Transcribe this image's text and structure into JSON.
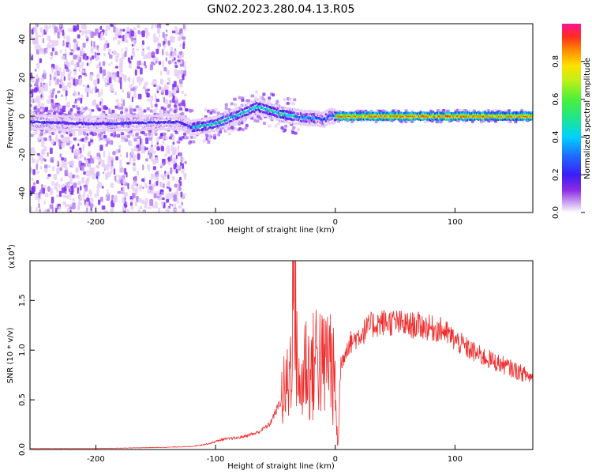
{
  "title": "GN02.2023.280.04.13.R05",
  "colors": {
    "snr_line": "#ee2c2c",
    "spec_palette": [
      "#ffffff",
      "#e6cff7",
      "#b27cf0",
      "#7e2cf0",
      "#3c1ef5",
      "#1f6bff",
      "#00d2ff",
      "#1ee68c",
      "#4cf03a",
      "#c0f018",
      "#ffe000",
      "#ff8a00",
      "#ff2e1e",
      "#ff1493"
    ]
  },
  "chart_data": [
    {
      "type": "heatmap",
      "xlabel": "Height of straight line (km)",
      "ylabel": "Frequency (Hz)",
      "xlim": [
        -255,
        165
      ],
      "ylim": [
        -50,
        48
      ],
      "xticks": [
        -200,
        -100,
        0,
        100
      ],
      "xtick_labels": [
        "-200",
        "-100",
        "0",
        "100"
      ],
      "yticks": [
        -40,
        -20,
        0,
        20,
        40
      ],
      "ytick_labels": [
        "-40",
        "-20",
        "0",
        "20",
        "40"
      ],
      "colorbar": {
        "label": "Normalized spectral amplitude",
        "range": [
          0,
          1
        ],
        "ticks": [
          0.0,
          0.2,
          0.4,
          0.6,
          0.8
        ],
        "tick_labels": [
          "0.0",
          "0.2",
          "0.4",
          "0.6",
          "0.8"
        ]
      },
      "ridge_frequency_hz": {
        "x": [
          -255,
          -200,
          -130,
          -120,
          -100,
          -80,
          -65,
          -55,
          -45,
          -35,
          -25,
          -15,
          -10,
          -5,
          0,
          20,
          50,
          100,
          165
        ],
        "y": [
          -3,
          -4,
          -3,
          -6,
          -4,
          1,
          5,
          3,
          1,
          0,
          -1,
          -1,
          -2,
          0,
          0,
          0,
          0,
          0,
          0
        ]
      },
      "broadband_noise_until_km": -125
    },
    {
      "type": "line",
      "xlabel": "Height of straight line (km)",
      "ylabel": "SNR (10 * v/v)",
      "y_multiplier": "(x10^4)",
      "y_multiplier_base": "(x10",
      "y_multiplier_exp": "4",
      "xlim": [
        -255,
        165
      ],
      "ylim": [
        0,
        1.9
      ],
      "xticks": [
        -200,
        -100,
        0,
        100
      ],
      "xtick_labels": [
        "-200",
        "-100",
        "0",
        "100"
      ],
      "yticks": [
        0.0,
        0.5,
        1.0,
        1.5
      ],
      "ytick_labels": [
        "0.0",
        "0.5",
        "1.0",
        "1.5"
      ],
      "series": [
        {
          "x": [
            -255,
            -200,
            -150,
            -120,
            -105,
            -95,
            -80,
            -65,
            -55,
            -45,
            -38,
            -35,
            -30,
            -25,
            -20,
            -15,
            -10,
            -5,
            0,
            2,
            5,
            10,
            20,
            30,
            40,
            50,
            60,
            70,
            80,
            90,
            100,
            110,
            120,
            130,
            140,
            150,
            165
          ],
          "y": [
            0.01,
            0.01,
            0.02,
            0.03,
            0.06,
            0.1,
            0.12,
            0.17,
            0.25,
            0.5,
            0.7,
            1.9,
            0.5,
            0.9,
            0.75,
            1.0,
            0.8,
            1.0,
            0.6,
            0.01,
            0.85,
            1.05,
            1.15,
            1.25,
            1.28,
            1.28,
            1.25,
            1.25,
            1.22,
            1.2,
            1.1,
            1.02,
            0.95,
            0.9,
            0.85,
            0.8,
            0.72
          ]
        }
      ]
    }
  ]
}
